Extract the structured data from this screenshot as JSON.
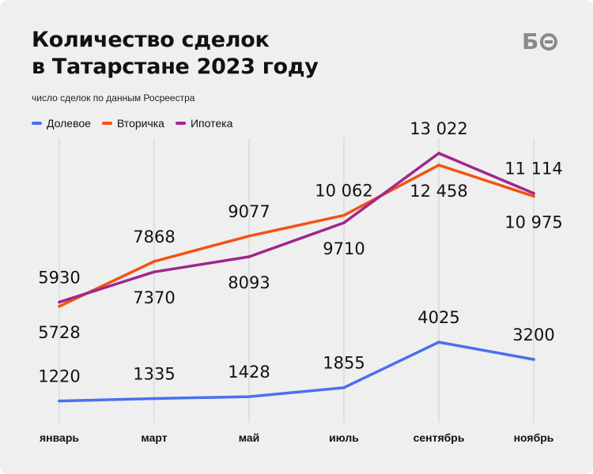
{
  "title_line1": "Количество сделок",
  "title_line2": "в Татарстане 2023 году",
  "subtitle": "число сделок по данным Росреестра",
  "logo": "БО",
  "chart_data": {
    "type": "line",
    "categories": [
      "январь",
      "март",
      "май",
      "июль",
      "сентябрь",
      "ноябрь"
    ],
    "ylim": [
      0,
      14000
    ],
    "grid": "vertical",
    "legend_position": "top-left",
    "series": [
      {
        "name": "Долевое",
        "color": "#4a6ff0",
        "values": [
          1220,
          1335,
          1428,
          1855,
          4025,
          3200
        ],
        "labels": [
          "1220",
          "1335",
          "1428",
          "1855",
          "4025",
          "3200"
        ]
      },
      {
        "name": "Вторичка",
        "color": "#f5520f",
        "values": [
          5728,
          7868,
          9077,
          10062,
          12458,
          10975
        ],
        "labels": [
          "5728",
          "7868",
          "9077",
          "10 062",
          "12 458",
          "10 975"
        ]
      },
      {
        "name": "Ипотека",
        "color": "#a0268c",
        "values": [
          5930,
          7370,
          8093,
          9710,
          13022,
          11114
        ],
        "labels": [
          "5930",
          "7370",
          "8093",
          "9710",
          "13 022",
          "11 114"
        ]
      }
    ]
  }
}
